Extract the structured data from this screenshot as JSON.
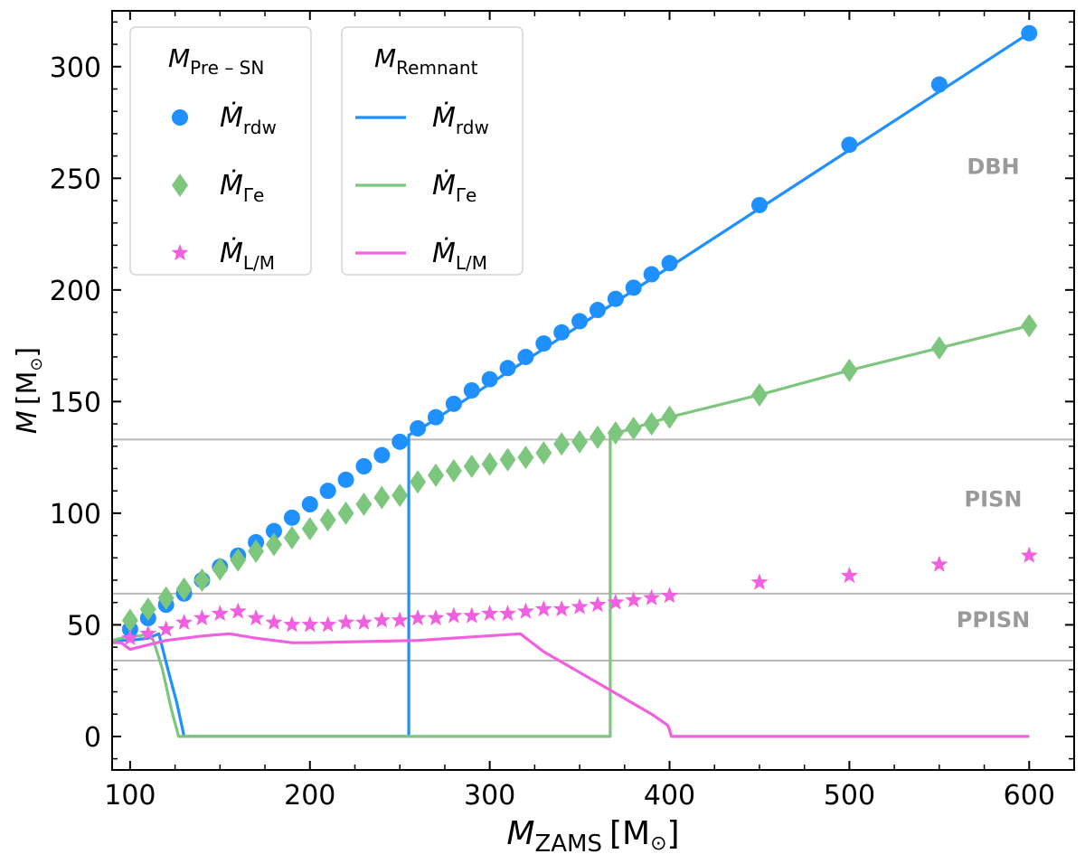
{
  "chart_data": {
    "type": "scatter",
    "xlabel": {
      "main": "M",
      "sub": "ZAMS",
      "unit": "[M",
      "unit_sub": "⊙",
      "unit_end": "]"
    },
    "ylabel": {
      "main": "M",
      "unit": "[M",
      "unit_sub": "⊙",
      "unit_end": "]"
    },
    "xlim": [
      90,
      625
    ],
    "ylim": [
      -15,
      325
    ],
    "x_ticks": [
      100,
      200,
      300,
      400,
      500,
      600
    ],
    "y_ticks": [
      0,
      50,
      100,
      150,
      200,
      250,
      300
    ],
    "x_tick_labels": [
      "100",
      "200",
      "300",
      "400",
      "500",
      "600"
    ],
    "y_tick_labels": [
      "0",
      "50",
      "100",
      "150",
      "200",
      "250",
      "300"
    ],
    "colors": {
      "rdw": "#1e90ff",
      "gamma": "#7dc67d",
      "lm": "#f060e0",
      "threshold": "#b8b8b8",
      "region_text": "#9a9a9a"
    },
    "thresholds": [
      {
        "name": "DBH / PISN boundary",
        "y": 133
      },
      {
        "name": "PISN / PPISN boundary",
        "y": 64
      },
      {
        "name": "PPISN lower boundary",
        "y": 34
      }
    ],
    "region_labels": [
      {
        "text": "DBH",
        "x": 580,
        "y": 252
      },
      {
        "text": "PISN",
        "x": 580,
        "y": 103
      },
      {
        "text": "PPISN",
        "x": 580,
        "y": 49
      }
    ],
    "legend_pre": {
      "title": "M",
      "title_sub": "Pre – SN",
      "entries": [
        {
          "symbol": "circle",
          "color": "#1e90ff",
          "main": "Ṁ",
          "sub": "rdw"
        },
        {
          "symbol": "diamond",
          "color": "#7dc67d",
          "main": "Ṁ",
          "sub": "Γe"
        },
        {
          "symbol": "star",
          "color": "#f060e0",
          "main": "Ṁ",
          "sub": "L/M"
        }
      ]
    },
    "legend_rem": {
      "title": "M",
      "title_sub": "Remnant",
      "entries": [
        {
          "symbol": "line",
          "color": "#1e90ff",
          "main": "Ṁ",
          "sub": "rdw"
        },
        {
          "symbol": "line",
          "color": "#7dc67d",
          "main": "Ṁ",
          "sub": "Γe"
        },
        {
          "symbol": "line",
          "color": "#f060e0",
          "main": "Ṁ",
          "sub": "L/M"
        }
      ]
    },
    "series_pre_sn": [
      {
        "name": "rdw",
        "marker": "circle",
        "color": "#1e90ff",
        "x": [
          100,
          110,
          120,
          130,
          140,
          150,
          160,
          170,
          180,
          190,
          200,
          210,
          220,
          230,
          240,
          250,
          260,
          270,
          280,
          290,
          300,
          310,
          320,
          330,
          340,
          350,
          360,
          370,
          380,
          390,
          400,
          450,
          500,
          550,
          600
        ],
        "y": [
          48,
          53,
          59,
          64,
          70,
          76,
          81,
          87,
          92,
          98,
          104,
          110,
          115,
          121,
          126,
          132,
          138,
          143,
          149,
          155,
          160,
          165,
          170,
          176,
          181,
          186,
          191,
          196,
          201,
          207,
          212,
          238,
          265,
          292,
          315
        ]
      },
      {
        "name": "gamma_e",
        "marker": "diamond",
        "color": "#7dc67d",
        "x": [
          100,
          110,
          120,
          130,
          140,
          150,
          160,
          170,
          180,
          190,
          200,
          210,
          220,
          230,
          240,
          250,
          260,
          270,
          280,
          290,
          300,
          310,
          320,
          330,
          340,
          350,
          360,
          370,
          380,
          390,
          400,
          450,
          500,
          550,
          600
        ],
        "y": [
          52,
          57,
          62,
          66,
          70,
          75,
          79,
          83,
          86,
          89,
          93,
          97,
          100,
          104,
          107,
          108,
          114,
          117,
          119,
          121,
          122,
          124,
          125,
          127,
          131,
          132,
          134,
          136,
          138,
          140,
          143,
          153,
          164,
          174,
          184
        ]
      },
      {
        "name": "L_over_M",
        "marker": "star",
        "color": "#f060e0",
        "x": [
          100,
          110,
          120,
          130,
          140,
          150,
          160,
          170,
          180,
          190,
          200,
          210,
          220,
          230,
          240,
          250,
          260,
          270,
          280,
          290,
          300,
          310,
          320,
          330,
          340,
          350,
          360,
          370,
          380,
          390,
          400,
          450,
          500,
          550,
          600
        ],
        "y": [
          44,
          46,
          48,
          51,
          53,
          55,
          56,
          53,
          51,
          50,
          50,
          50,
          51,
          51,
          52,
          52,
          53,
          53,
          54,
          54,
          55,
          55,
          56,
          57,
          57,
          58,
          59,
          60,
          61,
          62,
          63,
          69,
          72,
          77,
          81
        ]
      }
    ],
    "series_remnant": [
      {
        "name": "rdw",
        "color": "#1e90ff",
        "points": [
          [
            90,
            43
          ],
          [
            100,
            43
          ],
          [
            110,
            44
          ],
          [
            116,
            46
          ],
          [
            121,
            30
          ],
          [
            126,
            15
          ],
          [
            130,
            0
          ],
          [
            255,
            0
          ],
          [
            255,
            135
          ],
          [
            260,
            137
          ],
          [
            600,
            315
          ]
        ]
      },
      {
        "name": "gamma_e",
        "color": "#7dc67d",
        "points": [
          [
            90,
            43
          ],
          [
            95,
            44
          ],
          [
            100,
            45
          ],
          [
            105,
            45
          ],
          [
            110,
            46
          ],
          [
            113,
            43
          ],
          [
            118,
            30
          ],
          [
            123,
            12
          ],
          [
            127,
            0
          ],
          [
            367,
            0
          ],
          [
            367,
            135
          ],
          [
            400,
            143
          ],
          [
            450,
            153
          ],
          [
            500,
            164
          ],
          [
            550,
            174
          ],
          [
            600,
            184
          ]
        ]
      },
      {
        "name": "L_over_M",
        "color": "#f060e0",
        "points": [
          [
            90,
            42
          ],
          [
            95,
            42
          ],
          [
            100,
            39
          ],
          [
            105,
            40
          ],
          [
            120,
            43
          ],
          [
            140,
            45
          ],
          [
            155,
            46
          ],
          [
            163,
            45
          ],
          [
            170,
            44
          ],
          [
            180,
            43
          ],
          [
            190,
            42
          ],
          [
            200,
            42
          ],
          [
            260,
            43
          ],
          [
            317,
            46
          ],
          [
            330,
            38
          ],
          [
            360,
            24
          ],
          [
            390,
            10
          ],
          [
            399,
            5
          ],
          [
            400,
            3
          ],
          [
            401,
            0
          ],
          [
            600,
            0
          ]
        ]
      }
    ]
  }
}
